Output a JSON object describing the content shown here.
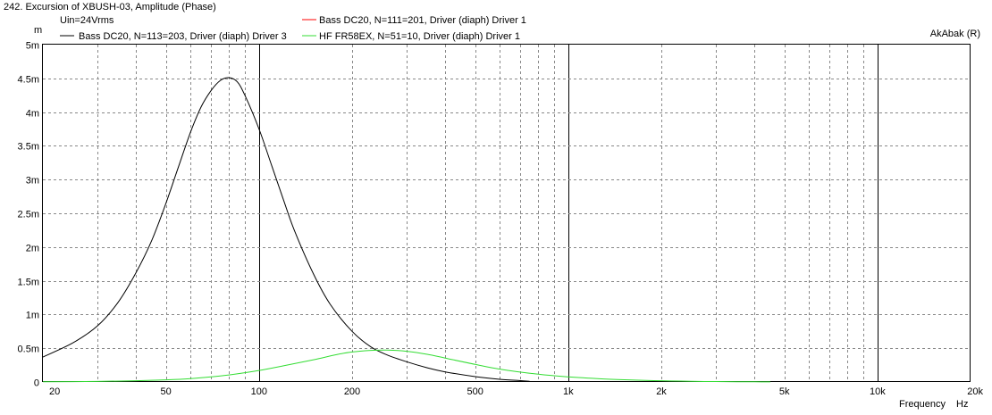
{
  "chart_data": {
    "type": "line",
    "title": "242. Excursion of XBUSH-03, Amplitude (Phase)",
    "subtitle": "Uin=24Vrms",
    "watermark": "AkAbak (R)",
    "xlabel": "Frequency",
    "xunit": "Hz",
    "yunit": "m",
    "xscale": "log",
    "xlim": [
      20,
      20000
    ],
    "ylim": [
      0,
      0.005
    ],
    "grid": true,
    "x_ticks": [
      {
        "value": 20,
        "label": "20"
      },
      {
        "value": 50,
        "label": "50"
      },
      {
        "value": 100,
        "label": "100"
      },
      {
        "value": 200,
        "label": "200"
      },
      {
        "value": 500,
        "label": "500"
      },
      {
        "value": 1000,
        "label": "1k"
      },
      {
        "value": 2000,
        "label": "2k"
      },
      {
        "value": 5000,
        "label": "5k"
      },
      {
        "value": 10000,
        "label": "10k"
      },
      {
        "value": 20000,
        "label": "20k"
      }
    ],
    "y_ticks": [
      {
        "value": 0,
        "label": "0"
      },
      {
        "value": 0.0005,
        "label": "0.5m"
      },
      {
        "value": 0.001,
        "label": "1m"
      },
      {
        "value": 0.0015,
        "label": "1.5m"
      },
      {
        "value": 0.002,
        "label": "2m"
      },
      {
        "value": 0.0025,
        "label": "2.5m"
      },
      {
        "value": 0.003,
        "label": "3m"
      },
      {
        "value": 0.0035,
        "label": "3.5m"
      },
      {
        "value": 0.004,
        "label": "4m"
      },
      {
        "value": 0.0045,
        "label": "4.5m"
      },
      {
        "value": 0.005,
        "label": "5m"
      }
    ],
    "series": [
      {
        "name": "Bass DC20, N=111=201, Driver (diaph) Driver 1",
        "color": "#ff0000",
        "points": []
      },
      {
        "name": "Bass DC20, N=113=203, Driver (diaph) Driver 3",
        "color": "#000000",
        "points": [
          [
            20,
            0.00037
          ],
          [
            25,
            0.00058
          ],
          [
            30,
            0.00083
          ],
          [
            35,
            0.00118
          ],
          [
            40,
            0.00162
          ],
          [
            45,
            0.0021
          ],
          [
            50,
            0.00265
          ],
          [
            55,
            0.0032
          ],
          [
            60,
            0.0037
          ],
          [
            65,
            0.00408
          ],
          [
            70,
            0.00432
          ],
          [
            75,
            0.00447
          ],
          [
            80,
            0.00451
          ],
          [
            85,
            0.00445
          ],
          [
            90,
            0.00425
          ],
          [
            100,
            0.00375
          ],
          [
            110,
            0.0032
          ],
          [
            120,
            0.0027
          ],
          [
            130,
            0.00225
          ],
          [
            150,
            0.0016
          ],
          [
            170,
            0.00115
          ],
          [
            200,
            0.00075
          ],
          [
            230,
            0.00052
          ],
          [
            260,
            0.0004
          ],
          [
            300,
            0.0003
          ],
          [
            350,
            0.00021
          ],
          [
            400,
            0.00015
          ],
          [
            500,
            8e-05
          ],
          [
            600,
            4e-05
          ],
          [
            700,
            2e-05
          ],
          [
            750,
            1e-05
          ]
        ]
      },
      {
        "name": "HF FR58EX, N=51=10, Driver (diaph) Driver 1",
        "color": "#33dd33",
        "points": [
          [
            20,
            3e-06
          ],
          [
            30,
            8e-06
          ],
          [
            40,
            1.8e-05
          ],
          [
            50,
            3.2e-05
          ],
          [
            60,
            5e-05
          ],
          [
            70,
            7.5e-05
          ],
          [
            80,
            0.000105
          ],
          [
            100,
            0.00017
          ],
          [
            120,
            0.00024
          ],
          [
            150,
            0.00033
          ],
          [
            180,
            0.00041
          ],
          [
            200,
            0.000445
          ],
          [
            230,
            0.000468
          ],
          [
            260,
            0.000472
          ],
          [
            300,
            0.000455
          ],
          [
            350,
            0.00041
          ],
          [
            400,
            0.000355
          ],
          [
            500,
            0.00026
          ],
          [
            600,
            0.00019
          ],
          [
            800,
            0.000115
          ],
          [
            1000,
            7.5e-05
          ],
          [
            1300,
            4.5e-05
          ],
          [
            1600,
            3e-05
          ],
          [
            2000,
            1.8e-05
          ],
          [
            2500,
            1e-05
          ],
          [
            3000,
            6e-06
          ],
          [
            3500,
            4e-06
          ],
          [
            4000,
            2e-06
          ],
          [
            4500,
            1e-06
          ]
        ]
      }
    ]
  }
}
